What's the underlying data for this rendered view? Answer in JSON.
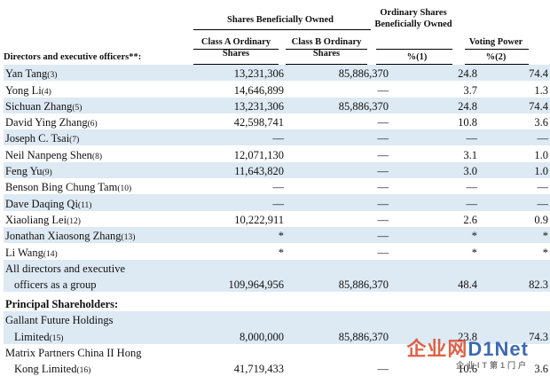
{
  "headers": {
    "shares_beneficially_owned": "Shares Beneficially Owned",
    "ordinary_shares_beneficially_owned": "Ordinary Shares Beneficially Owned",
    "voting_power": "Voting Power",
    "class_a": "Class A Ordinary Shares",
    "class_b": "Class B Ordinary Shares",
    "pct1": "%(1)",
    "pct2": "%(2)",
    "directors_label": "Directors and executive officers**:"
  },
  "rows": [
    {
      "name": "Yan Tang",
      "fn": "(3)",
      "class_a": "13,231,306",
      "class_b": "85,886,370",
      "pct": "24.8",
      "voting": "74.4",
      "shade": true
    },
    {
      "name": "Yong Li",
      "fn": "(4)",
      "class_a": "14,646,899",
      "class_b": "—",
      "pct": "3.7",
      "voting": "1.3",
      "shade": false
    },
    {
      "name": "Sichuan Zhang",
      "fn": "(5)",
      "class_a": "13,231,306",
      "class_b": "85,886,370",
      "pct": "24.8",
      "voting": "74.4",
      "shade": true
    },
    {
      "name": "David Ying Zhang",
      "fn": "(6)",
      "class_a": "42,598,741",
      "class_b": "—",
      "pct": "10.8",
      "voting": "3.6",
      "shade": false
    },
    {
      "name": "Joseph C. Tsai",
      "fn": "(7)",
      "class_a": "—",
      "class_b": "—",
      "pct": "—",
      "voting": "—",
      "shade": true
    },
    {
      "name": "Neil Nanpeng Shen",
      "fn": "(8)",
      "class_a": "12,071,130",
      "class_b": "—",
      "pct": "3.1",
      "voting": "1.0",
      "shade": false
    },
    {
      "name": "Feng Yu",
      "fn": "(9)",
      "class_a": "11,643,820",
      "class_b": "—",
      "pct": "3.0",
      "voting": "1.0",
      "shade": true
    },
    {
      "name": "Benson Bing Chung Tam",
      "fn": "(10)",
      "class_a": "—",
      "class_b": "—",
      "pct": "—",
      "voting": "—",
      "shade": false
    },
    {
      "name": "Dave Daqing Qi",
      "fn": "(11)",
      "class_a": "—",
      "class_b": "—",
      "pct": "—",
      "voting": "—",
      "shade": true
    },
    {
      "name": "Xiaoliang Lei",
      "fn": "(12)",
      "class_a": "10,222,911",
      "class_b": "—",
      "pct": "2.6",
      "voting": "0.9",
      "shade": false
    },
    {
      "name": "Jonathan Xiaosong Zhang",
      "fn": "(13)",
      "class_a": "*",
      "class_b": "—",
      "pct": "*",
      "voting": "*",
      "shade": true
    },
    {
      "name": "Li Wang",
      "fn": "(14)",
      "class_a": "*",
      "class_b": "—",
      "pct": "*",
      "voting": "*",
      "shade": false
    }
  ],
  "group": {
    "line1": "All directors and executive",
    "line2": "officers as a group",
    "class_a": "109,964,956",
    "class_b": "85,886,370",
    "pct": "48.4",
    "voting": "82.3"
  },
  "principal_label": "Principal Shareholders:",
  "principal": [
    {
      "line1": "Gallant Future Holdings",
      "line2": "Limited",
      "fn": "(15)",
      "class_a": "8,000,000",
      "class_b": "85,886,370",
      "pct": "23.8",
      "voting": "74.3"
    },
    {
      "line1": "Matrix Partners China II Hong",
      "line2": "Kong Limited",
      "fn": "(16)",
      "class_a": "41,719,433",
      "class_b": "—",
      "pct": "10.6",
      "voting": "3.6"
    }
  ],
  "watermark": {
    "big1": "企业网",
    "big2": "D1Net",
    "small": "企业IT第1门户"
  }
}
